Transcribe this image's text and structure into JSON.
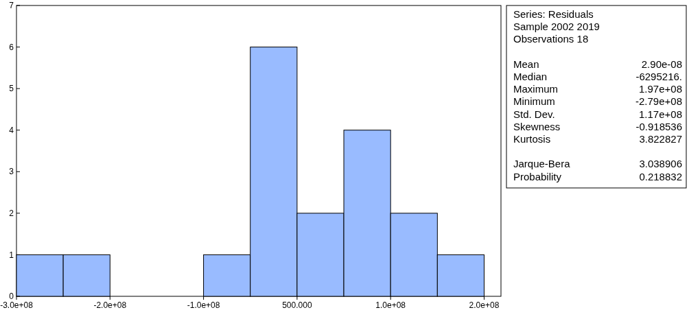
{
  "chart_data": [
    {
      "type": "histogram",
      "bins": [
        -300000000,
        -250000000,
        -200000000,
        -150000000,
        -100000000,
        -50000000,
        0,
        50000000,
        100000000,
        150000000,
        200000000
      ],
      "values": [
        1,
        1,
        0,
        0,
        1,
        6,
        2,
        4,
        2,
        1
      ],
      "color": "#99bbff",
      "xlim": [
        -300000000,
        218000000
      ],
      "ylim": [
        0,
        7
      ],
      "xticks": [
        {
          "value": -300000000,
          "label": "-3.0e+08"
        },
        {
          "value": -200000000,
          "label": "-2.0e+08"
        },
        {
          "value": -100000000,
          "label": "-1.0e+08"
        },
        {
          "value": 500,
          "label": "500.000"
        },
        {
          "value": 100000000,
          "label": "1.0e+08"
        },
        {
          "value": 200000000,
          "label": "2.0e+08"
        }
      ],
      "yticks": [
        0,
        1,
        2,
        3,
        4,
        5,
        6,
        7
      ]
    },
    {
      "type": "other",
      "annotations": [
        "Series: Residuals",
        "Sample 2002 2019",
        "Observations 18",
        "Mean",
        "2.90e-08",
        "Median",
        "-6295216.",
        "Maximum",
        "1.97e+08",
        "Minimum",
        "-2.79e+08",
        "Std. Dev.",
        "1.17e+08",
        "Skewness",
        "-0.918536",
        "Kurtosis",
        "3.822827",
        "Jarque-Bera",
        "3.038906",
        "Probability",
        "0.218832"
      ]
    }
  ]
}
